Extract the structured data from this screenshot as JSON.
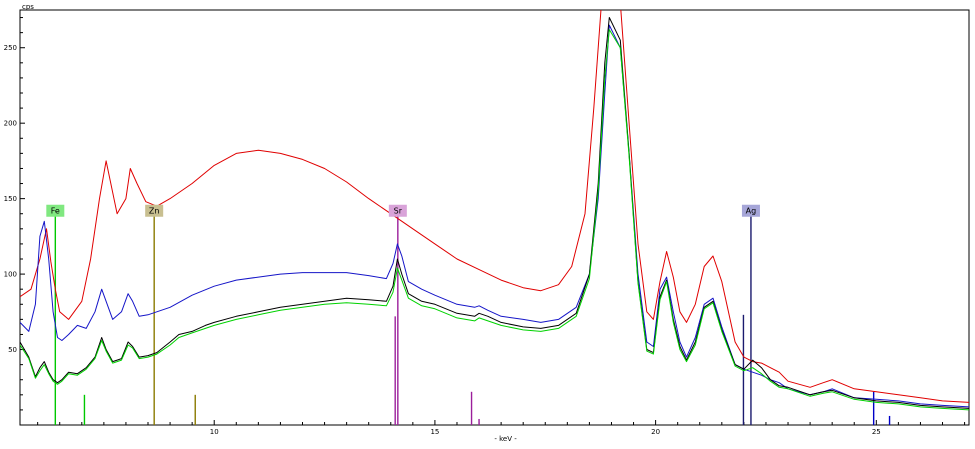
{
  "chart_data": {
    "type": "line",
    "ylabel": "cps",
    "xlabel": "- keV -",
    "xlim": [
      5.6,
      27.1
    ],
    "ylim": [
      0,
      275
    ],
    "xticks": [
      10,
      15,
      20,
      25
    ],
    "xtick_labels": [
      "10",
      "15",
      "20",
      "25"
    ],
    "yticks": [
      50,
      100,
      150,
      200,
      250
    ],
    "ytick_labels": [
      "50",
      "100",
      "150",
      "200",
      "250"
    ],
    "grid": false,
    "series": [
      {
        "color": "#e00000",
        "x": [
          5.6,
          5.85,
          6.05,
          6.2,
          6.3,
          6.4,
          6.5,
          6.7,
          7.0,
          7.2,
          7.4,
          7.55,
          7.8,
          8.0,
          8.1,
          8.25,
          8.45,
          8.7,
          9.0,
          9.5,
          10.0,
          10.5,
          11.0,
          11.5,
          12.0,
          12.5,
          13.0,
          13.5,
          14.0,
          14.5,
          15.0,
          15.5,
          16.0,
          16.5,
          17.0,
          17.4,
          17.8,
          18.1,
          18.4,
          18.6,
          18.8,
          18.9,
          19.2,
          19.4,
          19.6,
          19.8,
          19.95,
          20.1,
          20.25,
          20.4,
          20.55,
          20.7,
          20.9,
          21.1,
          21.3,
          21.5,
          21.8,
          22.0,
          22.2,
          22.4,
          22.6,
          22.8,
          23.0,
          23.5,
          23.8,
          24.0,
          24.5,
          25.0,
          25.5,
          26.0,
          26.5,
          27.1
        ],
        "y": [
          85,
          90,
          110,
          130,
          108,
          90,
          75,
          70,
          82,
          110,
          150,
          175,
          140,
          150,
          170,
          160,
          148,
          145,
          150,
          160,
          172,
          180,
          182,
          180,
          176,
          170,
          161,
          150,
          140,
          130,
          120,
          110,
          103,
          96,
          91,
          89,
          93,
          105,
          140,
          210,
          290,
          300,
          280,
          200,
          120,
          75,
          70,
          95,
          115,
          98,
          75,
          68,
          80,
          105,
          112,
          95,
          55,
          45,
          42,
          41,
          38,
          35,
          29,
          25,
          28,
          30,
          24,
          22,
          20,
          18,
          16,
          15
        ]
      },
      {
        "color": "#1515c8",
        "x": [
          5.6,
          5.8,
          5.95,
          6.05,
          6.15,
          6.25,
          6.35,
          6.45,
          6.55,
          6.7,
          6.9,
          7.1,
          7.3,
          7.45,
          7.55,
          7.7,
          7.9,
          8.05,
          8.15,
          8.3,
          8.5,
          8.7,
          9.0,
          9.5,
          10.0,
          10.5,
          11.0,
          11.5,
          12.0,
          12.5,
          13.0,
          13.5,
          13.9,
          14.05,
          14.15,
          14.25,
          14.4,
          14.7,
          15.0,
          15.5,
          15.9,
          16.0,
          16.2,
          16.5,
          17.0,
          17.4,
          17.8,
          18.2,
          18.5,
          18.7,
          18.85,
          18.95,
          19.2,
          19.4,
          19.6,
          19.8,
          19.95,
          20.1,
          20.25,
          20.4,
          20.55,
          20.7,
          20.9,
          21.1,
          21.3,
          21.5,
          21.8,
          22.0,
          22.2,
          22.4,
          22.6,
          22.8,
          23.0,
          23.5,
          23.8,
          24.0,
          24.5,
          25.0,
          25.5,
          26.0,
          26.5,
          27.1
        ],
        "y": [
          68,
          62,
          80,
          125,
          135,
          110,
          75,
          58,
          56,
          60,
          66,
          64,
          75,
          90,
          82,
          70,
          75,
          87,
          82,
          72,
          73,
          75,
          78,
          86,
          92,
          96,
          98,
          100,
          101,
          101,
          101,
          99,
          97,
          107,
          120,
          112,
          95,
          90,
          86,
          80,
          78,
          79,
          76,
          72,
          70,
          68,
          70,
          78,
          100,
          150,
          220,
          265,
          250,
          180,
          100,
          55,
          52,
          90,
          98,
          75,
          55,
          45,
          58,
          80,
          84,
          65,
          40,
          37,
          35,
          33,
          30,
          28,
          24,
          20,
          22,
          24,
          18,
          17,
          16,
          14,
          13,
          12
        ]
      },
      {
        "color": "#000000",
        "x": [
          5.6,
          5.8,
          5.95,
          6.05,
          6.15,
          6.25,
          6.35,
          6.45,
          6.55,
          6.7,
          6.9,
          7.1,
          7.3,
          7.45,
          7.55,
          7.7,
          7.9,
          8.05,
          8.15,
          8.3,
          8.5,
          8.7,
          9.0,
          9.2,
          9.5,
          9.8,
          10.0,
          10.5,
          11.0,
          11.5,
          12.0,
          12.5,
          13.0,
          13.5,
          13.9,
          14.05,
          14.15,
          14.25,
          14.4,
          14.7,
          15.0,
          15.5,
          15.9,
          16.0,
          16.2,
          16.5,
          17.0,
          17.4,
          17.8,
          18.2,
          18.5,
          18.7,
          18.85,
          18.95,
          19.2,
          19.4,
          19.6,
          19.8,
          19.95,
          20.1,
          20.25,
          20.4,
          20.55,
          20.7,
          20.9,
          21.1,
          21.3,
          21.5,
          21.8,
          22.0,
          22.2,
          22.4,
          22.6,
          22.8,
          23.0,
          23.5,
          23.8,
          24.0,
          24.5,
          25.0,
          25.5,
          26.0,
          26.5,
          27.1
        ],
        "y": [
          55,
          45,
          32,
          38,
          42,
          35,
          30,
          28,
          30,
          35,
          34,
          38,
          45,
          58,
          50,
          42,
          44,
          55,
          52,
          45,
          46,
          48,
          55,
          60,
          62,
          66,
          68,
          72,
          75,
          78,
          80,
          82,
          84,
          83,
          82,
          92,
          110,
          100,
          87,
          82,
          80,
          74,
          72,
          74,
          72,
          68,
          65,
          64,
          66,
          74,
          100,
          160,
          240,
          270,
          255,
          180,
          95,
          50,
          48,
          85,
          96,
          70,
          52,
          43,
          55,
          78,
          82,
          63,
          40,
          37,
          43,
          38,
          30,
          26,
          25,
          20,
          22,
          23,
          18,
          16,
          15,
          13,
          12,
          11
        ]
      },
      {
        "color": "#00d200",
        "x": [
          5.6,
          5.8,
          5.95,
          6.05,
          6.15,
          6.25,
          6.35,
          6.45,
          6.55,
          6.7,
          6.9,
          7.1,
          7.3,
          7.45,
          7.55,
          7.7,
          7.9,
          8.05,
          8.15,
          8.3,
          8.5,
          8.7,
          9.0,
          9.2,
          9.5,
          9.8,
          10.0,
          10.5,
          11.0,
          11.5,
          12.0,
          12.5,
          13.0,
          13.5,
          13.9,
          14.05,
          14.15,
          14.25,
          14.4,
          14.7,
          15.0,
          15.5,
          15.9,
          16.0,
          16.2,
          16.5,
          17.0,
          17.4,
          17.8,
          18.2,
          18.5,
          18.7,
          18.85,
          18.95,
          19.2,
          19.4,
          19.6,
          19.8,
          19.95,
          20.1,
          20.25,
          20.4,
          20.55,
          20.7,
          20.9,
          21.1,
          21.3,
          21.5,
          21.8,
          22.0,
          22.2,
          22.4,
          22.6,
          22.8,
          23.0,
          23.5,
          23.8,
          24.0,
          24.5,
          25.0,
          25.5,
          26.0,
          26.5,
          27.1
        ],
        "y": [
          53,
          44,
          31,
          36,
          40,
          34,
          29,
          27,
          29,
          34,
          33,
          37,
          44,
          56,
          49,
          41,
          43,
          53,
          51,
          44,
          45,
          47,
          53,
          58,
          61,
          64,
          66,
          70,
          73,
          76,
          78,
          80,
          81,
          80,
          79,
          88,
          104,
          96,
          84,
          79,
          77,
          71,
          69,
          71,
          69,
          66,
          63,
          62,
          64,
          72,
          97,
          155,
          230,
          262,
          250,
          178,
          94,
          49,
          47,
          83,
          95,
          68,
          50,
          42,
          53,
          77,
          81,
          62,
          39,
          36,
          38,
          34,
          29,
          25,
          24,
          19,
          21,
          22,
          17,
          15,
          14,
          12,
          11,
          10
        ]
      }
    ],
    "markers": [
      {
        "label": "Fe",
        "x": 6.4,
        "color": "#00b400",
        "box": "#80e880"
      },
      {
        "label": "Zn",
        "x": 8.64,
        "color": "#8a7a00",
        "box": "#c8bf90"
      },
      {
        "label": "Sr",
        "x": 14.16,
        "color": "#9b1e9b",
        "box": "#d9a3d9"
      },
      {
        "label": "Ag",
        "x": 22.16,
        "color": "#1a1a6e",
        "box": "#a6a6d8"
      }
    ],
    "lines": [
      {
        "x": 6.4,
        "y": 140,
        "color": "#00c800"
      },
      {
        "x": 7.06,
        "y": 20,
        "color": "#00c800"
      },
      {
        "x": 8.64,
        "y": 140,
        "color": "#8a7a00"
      },
      {
        "x": 9.57,
        "y": 20,
        "color": "#8a7a00"
      },
      {
        "x": 14.1,
        "y": 72,
        "color": "#9b1e9b"
      },
      {
        "x": 14.16,
        "y": 140,
        "color": "#9b1e9b"
      },
      {
        "x": 15.83,
        "y": 22,
        "color": "#9b1e9b"
      },
      {
        "x": 16.0,
        "y": 4,
        "color": "#9b1e9b"
      },
      {
        "x": 21.99,
        "y": 73,
        "color": "#1a1a6e"
      },
      {
        "x": 22.16,
        "y": 140,
        "color": "#1a1a6e"
      },
      {
        "x": 24.94,
        "y": 22,
        "color": "#0000c8"
      },
      {
        "x": 25.3,
        "y": 6,
        "color": "#0000c8"
      }
    ]
  }
}
